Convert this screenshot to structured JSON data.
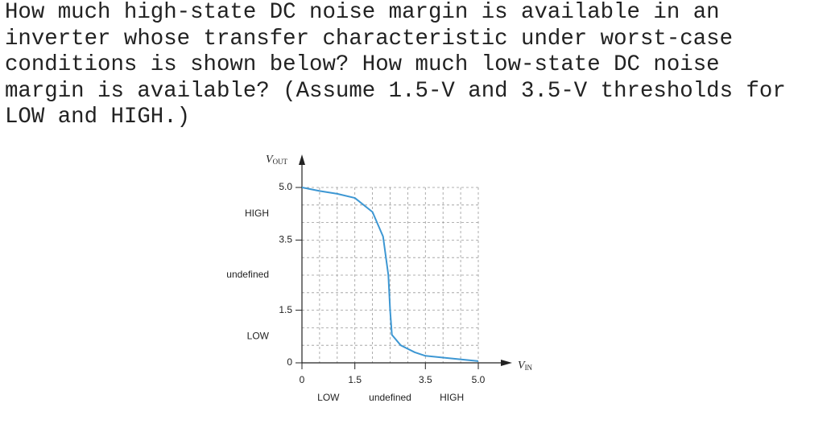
{
  "question": {
    "lines": [
      "How much high-state DC noise margin is available in an",
      "inverter whose transfer characteristic under worst-case",
      "conditions is shown below? How much low-state DC noise",
      "margin is available? (Assume 1.5-V and 3.5-V thresholds for",
      "LOW and HIGH.)"
    ]
  },
  "chart_data": {
    "type": "line",
    "xlabel": {
      "symbol": "V",
      "subscript": "IN"
    },
    "ylabel": {
      "symbol": "V",
      "subscript": "OUT"
    },
    "x": [
      0,
      0.5,
      1.0,
      1.5,
      2.0,
      2.3,
      2.45,
      2.5,
      2.55,
      2.8,
      3.2,
      3.5,
      4.0,
      5.0
    ],
    "values": [
      5.0,
      4.9,
      4.82,
      4.7,
      4.3,
      3.6,
      2.5,
      1.5,
      0.8,
      0.5,
      0.3,
      0.2,
      0.15,
      0.05
    ],
    "color": "#3d97d3",
    "xlim": [
      0,
      5
    ],
    "ylim": [
      0,
      5
    ],
    "xticks": [
      0,
      1.5,
      3.5,
      {
        "value": 5,
        "label": "5.0"
      }
    ],
    "yticks": [
      0,
      1.5,
      3.5,
      {
        "value": 5,
        "label": "5.0"
      }
    ],
    "x_regions": [
      "LOW",
      "undefined",
      "HIGH"
    ],
    "y_regions": [
      "LOW",
      "undefined",
      "HIGH"
    ],
    "grid": true
  }
}
